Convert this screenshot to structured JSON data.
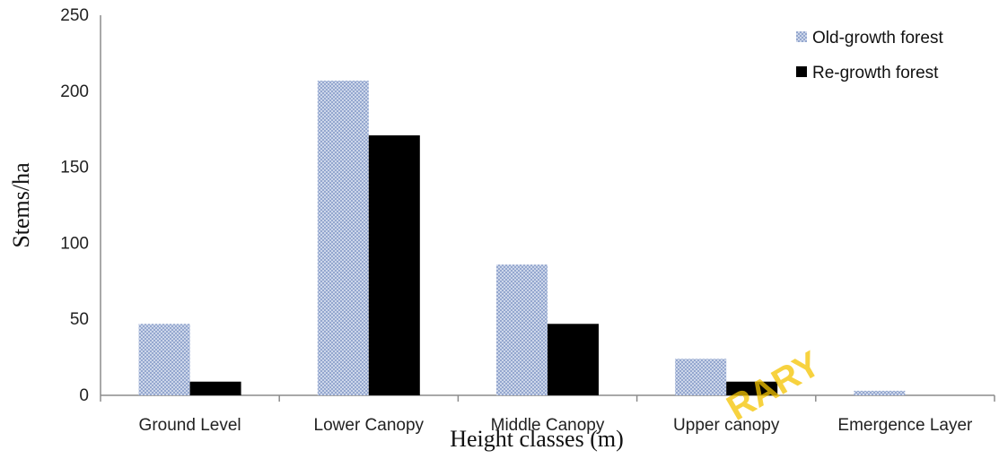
{
  "chart_data": {
    "type": "bar",
    "title": "",
    "xlabel": "Height classes (m)",
    "ylabel": "Stems/ha",
    "ylim": [
      0,
      250
    ],
    "yticks": [
      0,
      50,
      100,
      150,
      200,
      250
    ],
    "grid": false,
    "legend_position": "top-right",
    "categories": [
      "Ground Level",
      "Lower Canopy",
      "Middle Canopy",
      "Upper canopy",
      "Emergence Layer"
    ],
    "series": [
      {
        "name": "Old-growth forest",
        "values": [
          47,
          207,
          86,
          24,
          3
        ],
        "color": "#a9b8d8",
        "pattern": "crosshatch"
      },
      {
        "name": "Re-growth forest",
        "values": [
          9,
          171,
          47,
          9,
          0
        ],
        "color": "#000000",
        "pattern": "solid"
      }
    ]
  },
  "watermark": {
    "text": "RARY",
    "color": "#f5c400"
  }
}
